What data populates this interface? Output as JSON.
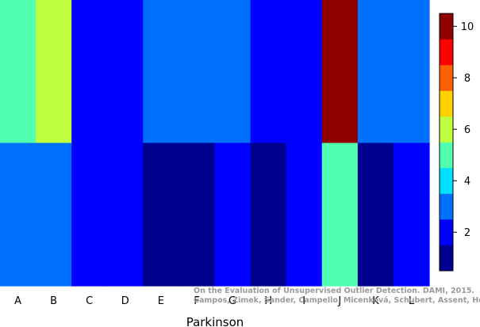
{
  "chart_data": {
    "type": "heatmap",
    "xlabel": "Parkinson",
    "x_categories": [
      "A",
      "B",
      "C",
      "D",
      "E",
      "F",
      "G",
      "H",
      "I",
      "J",
      "K",
      "L"
    ],
    "rows": 2,
    "values": [
      [
        5,
        6,
        2,
        2,
        3,
        3,
        3,
        2,
        2,
        10,
        3,
        3
      ],
      [
        3,
        3,
        2,
        2,
        1,
        1,
        2,
        1,
        2,
        5,
        1,
        2
      ]
    ],
    "color_scale": {
      "min": 0.5,
      "max": 10.5,
      "ticks": [
        2,
        4,
        6,
        8,
        10
      ],
      "colors": [
        "#00008f",
        "#0000ff",
        "#0070ff",
        "#00dfff",
        "#50ffaf",
        "#bfff40",
        "#ffcf00",
        "#ff6000",
        "#ff0000",
        "#8f0000"
      ]
    },
    "legend": "right",
    "grid": false
  },
  "watermark": {
    "line1": "On the Evaluation of Unsupervised Outlier Detection. DAMI, 2015.",
    "line2": "Campos, Zimek, Sander, Campello, Micenková, Schubert, Assent, Houle"
  }
}
